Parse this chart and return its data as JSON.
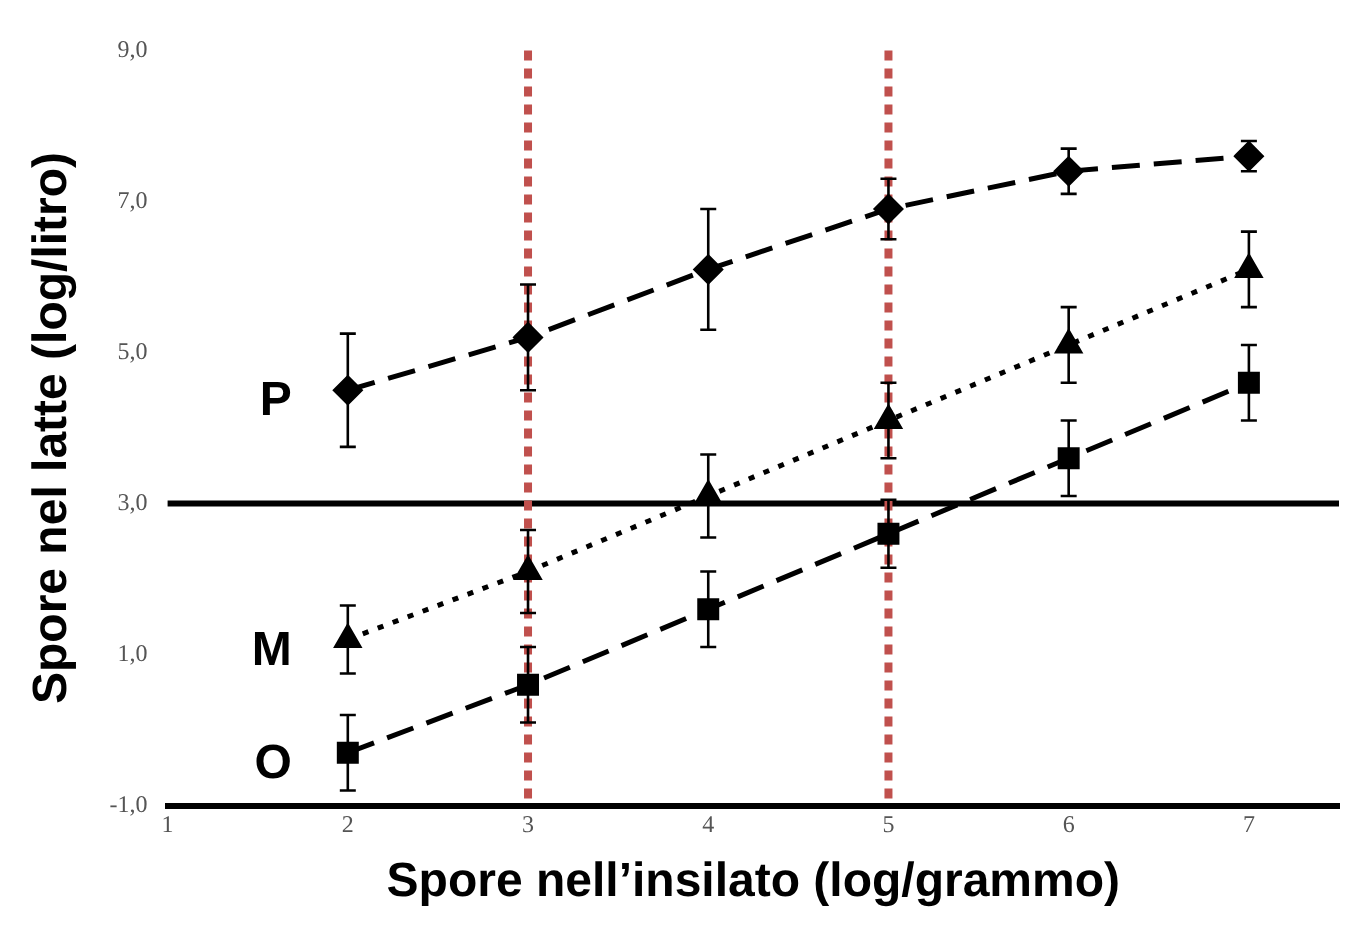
{
  "chart_data": {
    "type": "line",
    "xlabel": "Spore nell’insilato (log/grammo)",
    "ylabel": "Spore nel latte (log/litro)",
    "x": [
      2,
      3,
      4,
      5,
      6,
      7
    ],
    "xlim": [
      1,
      7.5
    ],
    "xticks": [
      1,
      2,
      3,
      4,
      5,
      6,
      7
    ],
    "ylim": [
      -1,
      9
    ],
    "yticks": [
      {
        "value": -1,
        "label": "-1,0"
      },
      {
        "value": 1,
        "label": "1,0"
      },
      {
        "value": 3,
        "label": "3,0"
      },
      {
        "value": 5,
        "label": "5,0"
      },
      {
        "value": 7,
        "label": "7,0"
      },
      {
        "value": 9,
        "label": "9,0"
      }
    ],
    "grid": false,
    "legend": false,
    "series": [
      {
        "name": "P",
        "color": "#000000",
        "marker": "diamond",
        "line_style": "dashed",
        "values": [
          4.5,
          5.2,
          6.1,
          6.9,
          7.4,
          7.6
        ],
        "errors": [
          0.75,
          0.7,
          0.8,
          0.4,
          0.3,
          0.2
        ]
      },
      {
        "name": "M",
        "color": "#000000",
        "marker": "triangle",
        "line_style": "dotted",
        "values": [
          1.2,
          2.1,
          3.1,
          4.1,
          5.1,
          6.1
        ],
        "errors": [
          0.45,
          0.55,
          0.55,
          0.5,
          0.5,
          0.5
        ]
      },
      {
        "name": "O",
        "color": "#000000",
        "marker": "square",
        "line_style": "dashed",
        "values": [
          -0.3,
          0.6,
          1.6,
          2.6,
          3.6,
          4.6
        ],
        "errors": [
          0.5,
          0.5,
          0.5,
          0.45,
          0.5,
          0.5
        ]
      }
    ],
    "ref_lines": [
      {
        "axis": "y",
        "value": 3,
        "color": "#000000",
        "line_style": "solid"
      },
      {
        "axis": "x",
        "value": 3,
        "color": "#c0504d",
        "line_style": "dotted"
      },
      {
        "axis": "x",
        "value": 5,
        "color": "#c0504d",
        "line_style": "dotted"
      }
    ]
  }
}
